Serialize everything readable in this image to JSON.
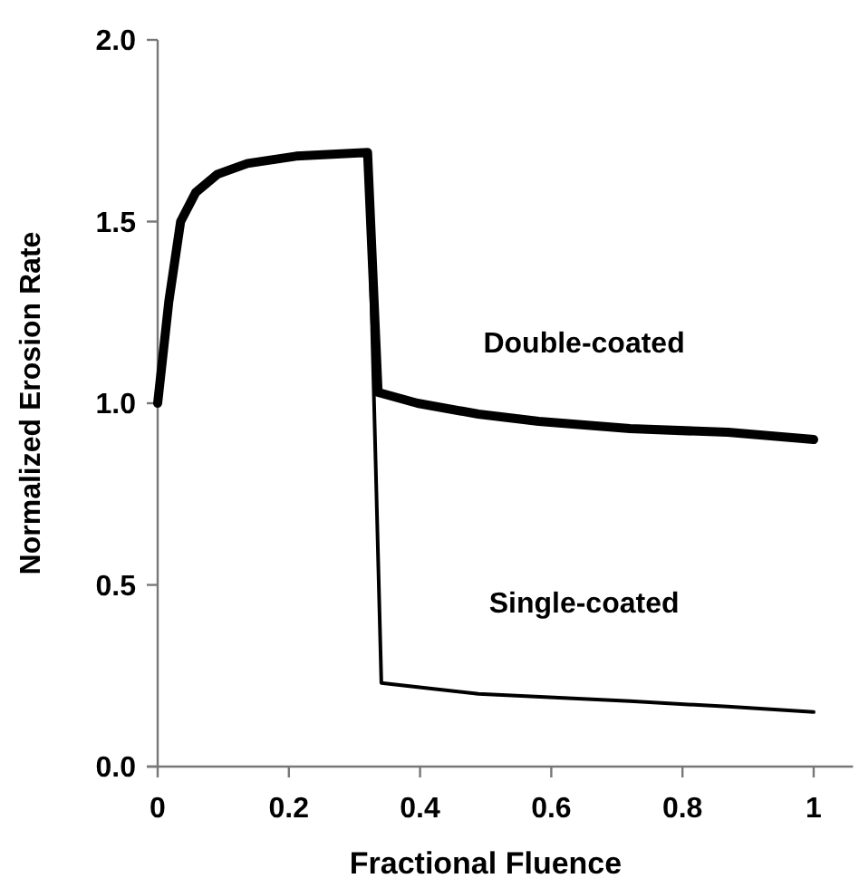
{
  "chart_data": {
    "type": "line",
    "xlabel": "Fractional Fluence",
    "ylabel": "Normalized Erosion Rate",
    "xlim": [
      0,
      1.06
    ],
    "xticks": [
      0,
      0.2,
      0.4,
      0.6,
      0.8,
      1
    ],
    "ylim": [
      0,
      2
    ],
    "yticks": [
      {
        "value": 0,
        "label": "0.0"
      },
      {
        "value": 0.5,
        "label": "0.5"
      },
      {
        "value": 1,
        "label": "1.0"
      },
      {
        "value": 1.5,
        "label": "1.5"
      },
      {
        "value": 2,
        "label": "2.0"
      }
    ],
    "grid": false,
    "marker": "none",
    "line_style": "solid",
    "series": [
      {
        "name": "Double-coated",
        "color": "#000000",
        "x": [
          0,
          0.017,
          0.035,
          0.058,
          0.091,
          0.137,
          0.211,
          0.32,
          0.336,
          0.396,
          0.489,
          0.581,
          0.72,
          0.869,
          1
        ],
        "values": [
          1.0,
          1.28,
          1.5,
          1.58,
          1.63,
          1.66,
          1.68,
          1.69,
          1.03,
          1.0,
          0.97,
          0.95,
          0.93,
          0.92,
          0.9
        ]
      },
      {
        "name": "Single-coated",
        "color": "#000000",
        "x": [
          0.32,
          0.341,
          0.489,
          0.72,
          0.869,
          1
        ],
        "values": [
          1.69,
          0.23,
          0.2,
          0.18,
          0.165,
          0.15
        ]
      }
    ]
  }
}
